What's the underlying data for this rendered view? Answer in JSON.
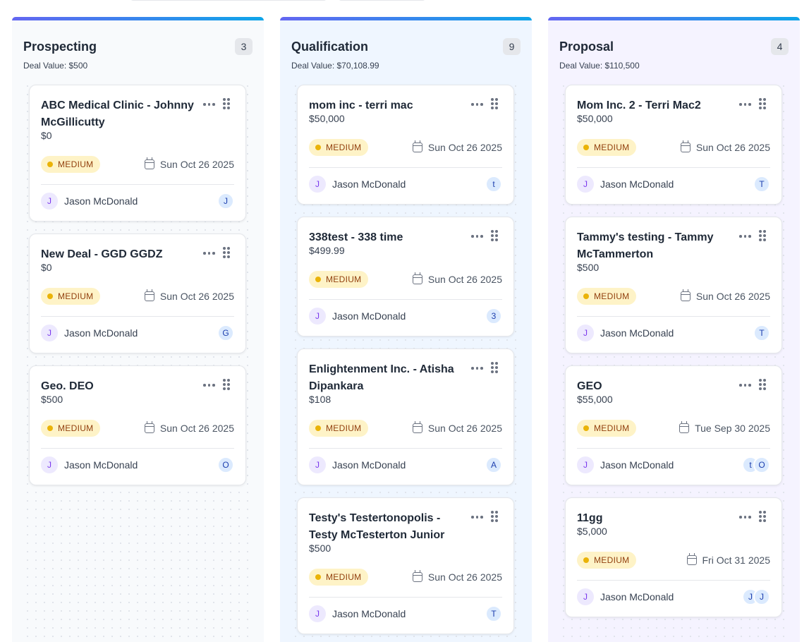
{
  "columns": [
    {
      "title": "Prospecting",
      "count": "3",
      "deal_value": "Deal Value: $500",
      "cards": [
        {
          "title": "ABC Medical Clinic - Johnny McGillicutty",
          "amount": "$0",
          "priority": "MEDIUM",
          "date": "Sun Oct 26 2025",
          "owner_initial": "J",
          "owner": "Jason McDonald",
          "contacts": [
            "J"
          ]
        },
        {
          "title": "New Deal - GGD GGDZ",
          "amount": "$0",
          "priority": "MEDIUM",
          "date": "Sun Oct 26 2025",
          "owner_initial": "J",
          "owner": "Jason McDonald",
          "contacts": [
            "G"
          ]
        },
        {
          "title": "Geo. DEO",
          "amount": "$500",
          "priority": "MEDIUM",
          "date": "Sun Oct 26 2025",
          "owner_initial": "J",
          "owner": "Jason McDonald",
          "contacts": [
            "O"
          ]
        }
      ]
    },
    {
      "title": "Qualification",
      "count": "9",
      "deal_value": "Deal Value: $70,108.99",
      "cards": [
        {
          "title": "mom inc - terri mac",
          "amount": "$50,000",
          "priority": "MEDIUM",
          "date": "Sun Oct 26 2025",
          "owner_initial": "J",
          "owner": "Jason McDonald",
          "contacts": [
            "t"
          ]
        },
        {
          "title": "338test - 338 time",
          "amount": "$499.99",
          "priority": "MEDIUM",
          "date": "Sun Oct 26 2025",
          "owner_initial": "J",
          "owner": "Jason McDonald",
          "contacts": [
            "3"
          ]
        },
        {
          "title": "Enlightenment Inc. - Atisha Dipankara",
          "amount": "$108",
          "priority": "MEDIUM",
          "date": "Sun Oct 26 2025",
          "owner_initial": "J",
          "owner": "Jason McDonald",
          "contacts": [
            "A"
          ]
        },
        {
          "title": "Testy's Testertonopolis - Testy McTesterton Junior",
          "amount": "$500",
          "priority": "MEDIUM",
          "date": "Sun Oct 26 2025",
          "owner_initial": "J",
          "owner": "Jason McDonald",
          "contacts": [
            "T"
          ]
        }
      ]
    },
    {
      "title": "Proposal",
      "count": "4",
      "deal_value": "Deal Value: $110,500",
      "cards": [
        {
          "title": "Mom Inc. 2 - Terri Mac2",
          "amount": "$50,000",
          "priority": "MEDIUM",
          "date": "Sun Oct 26 2025",
          "owner_initial": "J",
          "owner": "Jason McDonald",
          "contacts": [
            "T"
          ]
        },
        {
          "title": "Tammy's testing - Tammy McTammerton",
          "amount": "$500",
          "priority": "MEDIUM",
          "date": "Sun Oct 26 2025",
          "owner_initial": "J",
          "owner": "Jason McDonald",
          "contacts": [
            "T"
          ]
        },
        {
          "title": "GEO",
          "amount": "$55,000",
          "priority": "MEDIUM",
          "date": "Tue Sep 30 2025",
          "owner_initial": "J",
          "owner": "Jason McDonald",
          "contacts": [
            "t",
            "O"
          ]
        },
        {
          "title": "11gg",
          "amount": "$5,000",
          "priority": "MEDIUM",
          "date": "Fri Oct 31 2025",
          "owner_initial": "J",
          "owner": "Jason McDonald",
          "contacts": [
            "J",
            "J"
          ]
        }
      ]
    }
  ],
  "icons": {
    "menu": "more-horizontal-icon",
    "drag": "drag-handle-icon",
    "date": "calendar-icon"
  },
  "colors": {
    "accent_gradient_start": "#6366f1",
    "accent_gradient_end": "#0ea5e9",
    "priority_medium_bg": "#fef3c7",
    "priority_medium_dot": "#eab308"
  }
}
